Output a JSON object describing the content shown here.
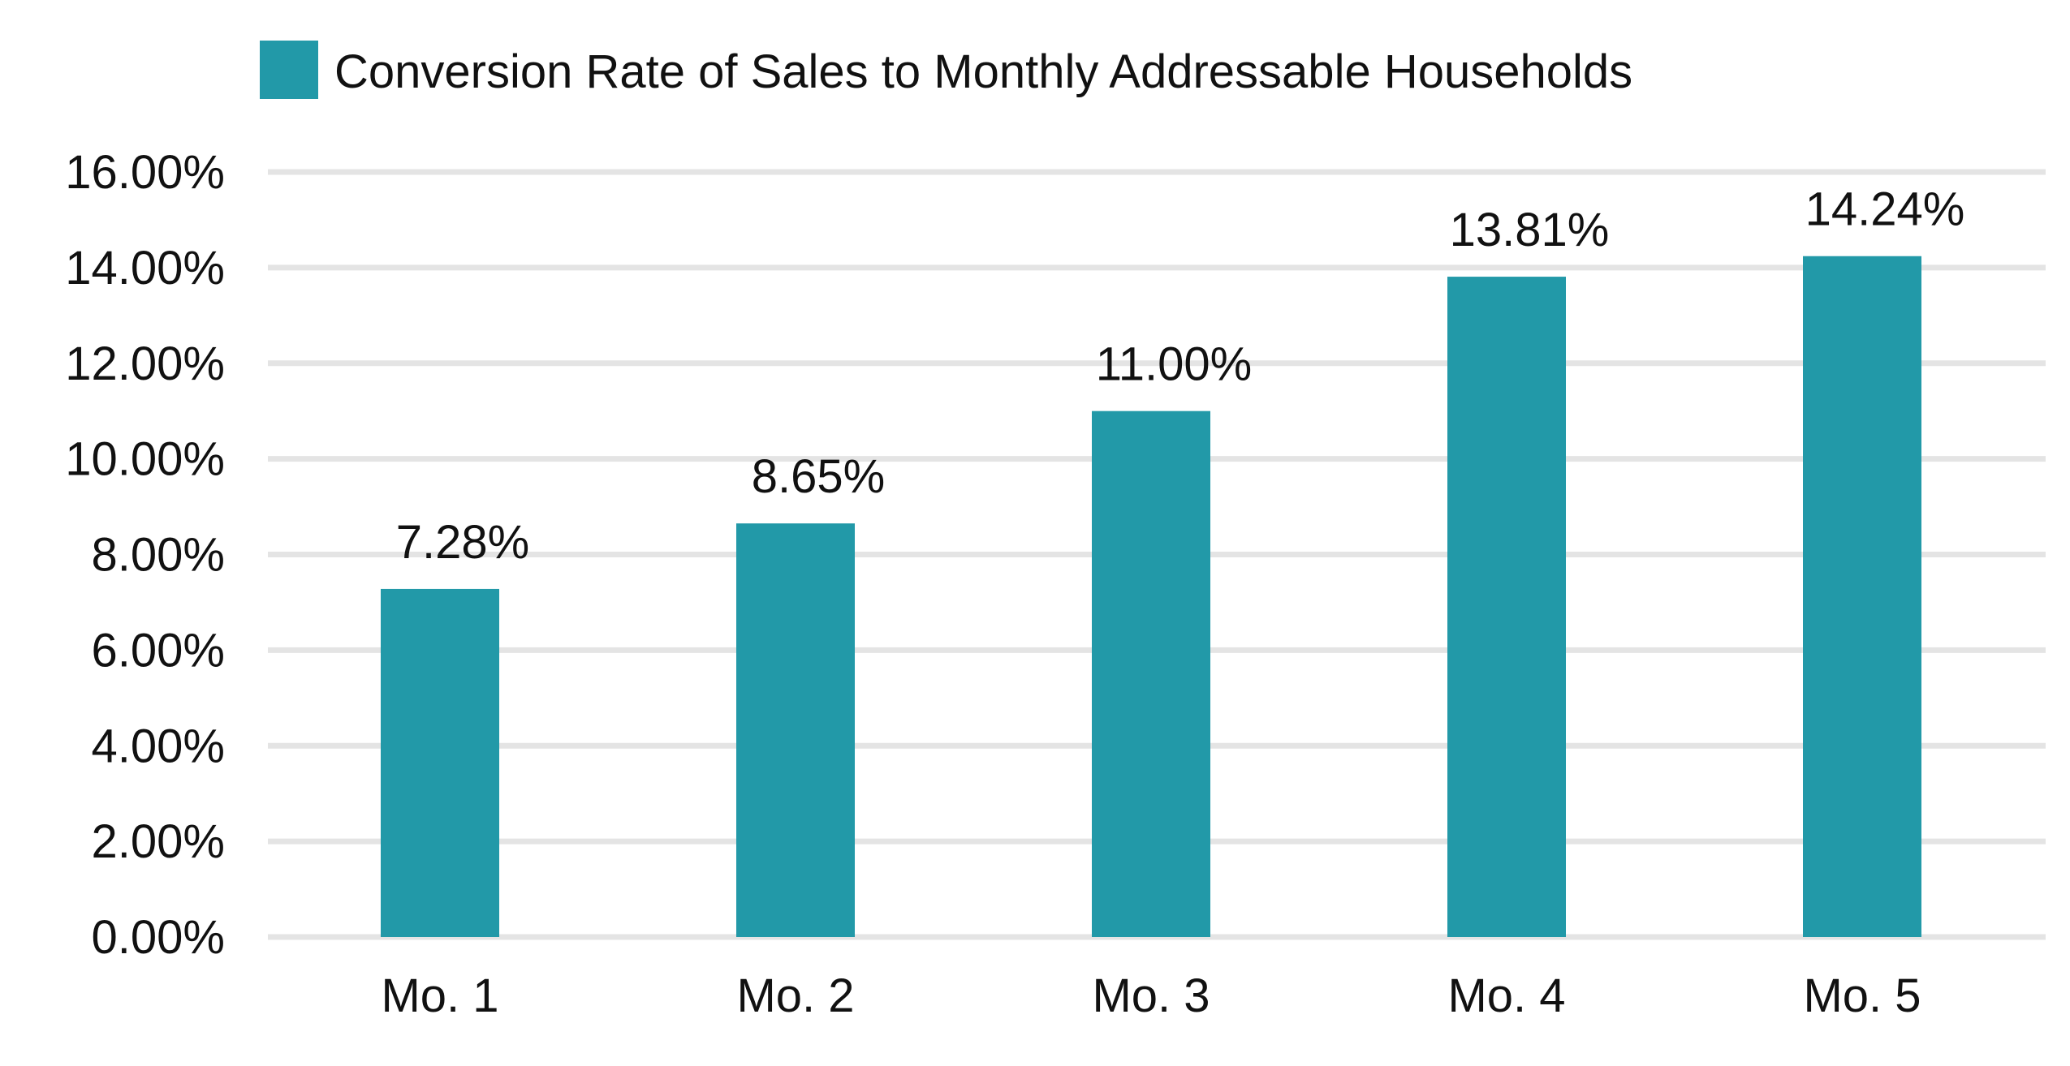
{
  "chart_data": {
    "type": "bar",
    "title": "",
    "xlabel": "",
    "ylabel": "",
    "categories": [
      "Mo. 1",
      "Mo. 2",
      "Mo. 3",
      "Mo. 4",
      "Mo. 5"
    ],
    "series": [
      {
        "name": "Conversion Rate of Sales to Monthly Addressable Households",
        "values": [
          7.28,
          8.65,
          11.0,
          13.81,
          14.24
        ],
        "data_labels": [
          "7.28%",
          "8.65%",
          "11.00%",
          "13.81%",
          "14.24%"
        ],
        "color": "#2299A8"
      }
    ],
    "ylim": [
      0,
      16
    ],
    "y_ticks": [
      0,
      2,
      4,
      6,
      8,
      10,
      12,
      14,
      16
    ],
    "y_tick_labels": [
      "0.00%",
      "2.00%",
      "4.00%",
      "6.00%",
      "8.00%",
      "10.00%",
      "12.00%",
      "14.00%",
      "16.00%"
    ],
    "grid": true,
    "gridline_color": "#E4E4E4",
    "legend_position": "top-left"
  }
}
